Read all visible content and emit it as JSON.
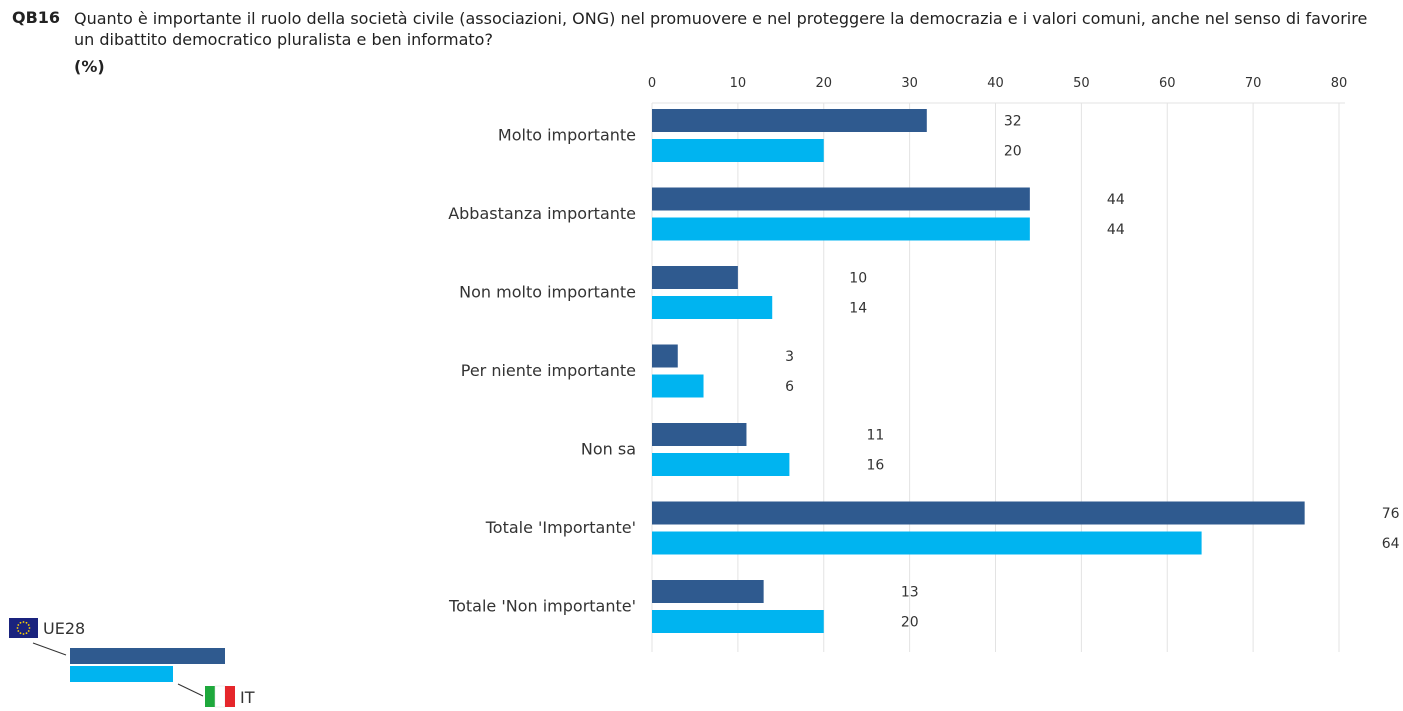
{
  "header": {
    "code": "QB16",
    "question": "Quanto è importante il ruolo della società civile (associazioni, ONG) nel promuovere e nel proteggere la democrazia e i valori comuni, anche nel senso di favorire un dibattito democratico pluralista e ben informato?",
    "unit": "(%)"
  },
  "colors": {
    "ue28": "#2f5a8f",
    "it": "#00b4f0",
    "grid": "#e3e3e3"
  },
  "legend": {
    "ue28_label": "UE28",
    "it_label": "IT",
    "ue28_icon": "eu-flag-icon",
    "it_icon": "italy-flag-icon"
  },
  "chart_data": {
    "type": "bar",
    "orientation": "horizontal",
    "title": "",
    "xlabel": "",
    "ylabel": "",
    "xlim": [
      0,
      80
    ],
    "ticks": [
      0,
      10,
      20,
      30,
      40,
      50,
      60,
      70,
      80
    ],
    "grid": true,
    "legend_position": "bottom-left",
    "categories": [
      "Molto importante",
      "Abbastanza importante",
      "Non molto importante",
      "Per niente importante",
      "Non sa",
      "Totale 'Importante'",
      "Totale 'Non importante'"
    ],
    "series": [
      {
        "name": "UE28",
        "values": [
          32,
          44,
          10,
          3,
          11,
          76,
          13
        ]
      },
      {
        "name": "IT",
        "values": [
          20,
          44,
          14,
          6,
          16,
          64,
          20
        ]
      }
    ]
  }
}
